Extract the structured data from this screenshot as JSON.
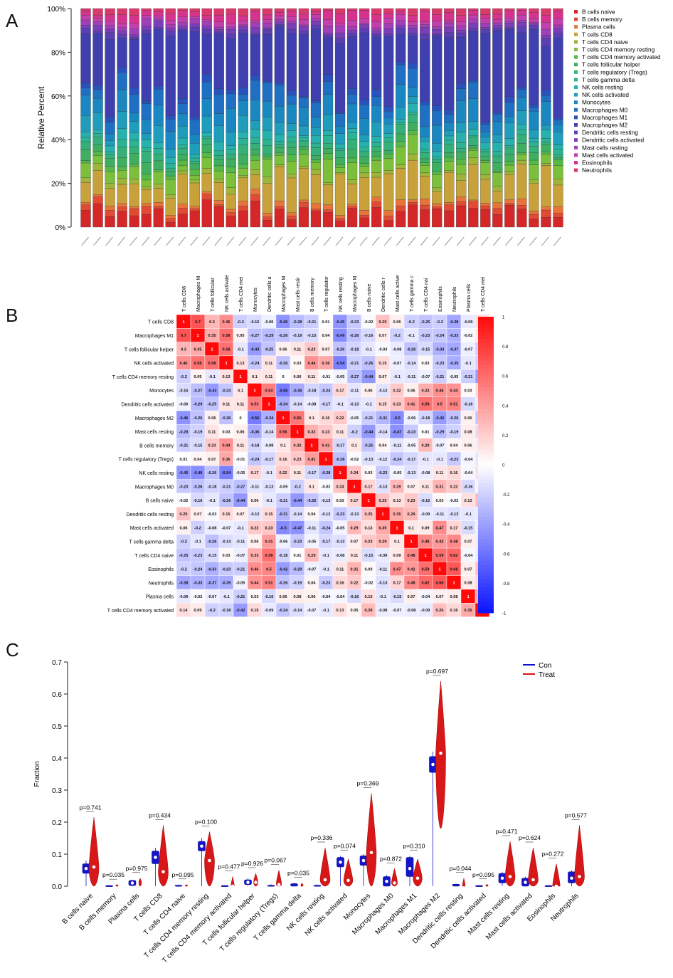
{
  "panels": {
    "a": "A",
    "b": "B",
    "c": "C"
  },
  "chart_data": [
    {
      "type": "bar",
      "stacked": true,
      "title": "",
      "ylabel": "Relative Percent",
      "yticks": [
        "0%",
        "20%",
        "40%",
        "60%",
        "80%",
        "100%"
      ],
      "ylim": [
        0,
        1
      ],
      "n_samples": 40,
      "categories": [
        "B cells naive",
        "B cells memory",
        "Plasma cells",
        "T cells CD8",
        "T cells CD4 naive",
        "T cells CD4 memory resting",
        "T cells CD4 memory activated",
        "T cells follicular helper",
        "T cells regulatory (Tregs)",
        "T cells gamma delta",
        "NK cells resting",
        "NK cells activated",
        "Monocytes",
        "Macrophages M0",
        "Macrophages M1",
        "Macrophages M2",
        "Dendritic cells resting",
        "Dendritic cells activated",
        "Mast cells resting",
        "Mast cells activated",
        "Eosinophils",
        "Neutrophils"
      ],
      "colors": [
        "#d62728",
        "#e34a33",
        "#e8743b",
        "#c8a13a",
        "#9fb53a",
        "#7cbf3a",
        "#55b848",
        "#3fae60",
        "#35b078",
        "#2bb394",
        "#26b1ae",
        "#1f9dbb",
        "#1b87c0",
        "#1f6fc2",
        "#2a52be",
        "#3f3fb0",
        "#5a3fb5",
        "#7a3fb8",
        "#a03fb8",
        "#c23fae",
        "#d6338f",
        "#d93a6a"
      ],
      "legend": [
        "B cells naive",
        "B cells memory",
        "Plasma cells",
        "T cells CD8",
        "T cells CD4 naive",
        "T cells CD4 memory resting",
        "T cells CD4 memory activated",
        "T cells follicular helper",
        "T cells regulatory (Tregs)",
        "T cells gamma delta",
        "NK cells resting",
        "NK cells activated",
        "Monocytes",
        "Macrophages M0",
        "Macrophages M1",
        "Macrophages M2",
        "Dendritic cells resting",
        "Dendritic cells activated",
        "Mast cells resting",
        "Mast cells activated",
        "Eosinophils",
        "Neutrophils"
      ],
      "legend_position": "right"
    },
    {
      "type": "heatmap",
      "labels": [
        "T cells CD8",
        "Macrophages M1",
        "T cells follicular helper",
        "NK cells activated",
        "T cells CD4 memory resting",
        "Monocytes",
        "Dendritic cells activated",
        "Macrophages M2",
        "Mast cells resting",
        "B cells memory",
        "T cells regulatory (Tregs)",
        "NK cells resting",
        "Macrophages M0",
        "B cells naive",
        "Dendritic cells resting",
        "Mast cells activated",
        "T cells gamma delta",
        "T cells CD4 naive",
        "Eosinophils",
        "Neutrophils",
        "Plasma cells",
        "T cells CD4 memory activated"
      ],
      "col_labels_truncated": [
        "T cells CD8",
        "Macrophages M",
        "T cells follicular",
        "NK cells activate",
        "T cells CD4 mei",
        "Monocytes",
        "Dendritic cells a",
        "Macrophages M",
        "Mast cells restir",
        "B cells memory",
        "T cells regulator",
        "NK cells resting",
        "Macrophages M",
        "B cells naive",
        "Dendritic cells r",
        "Mast cells active",
        "T cells gamma c",
        "T cells CD4 nai",
        "Eosinophils",
        "Neutrophils",
        "Plasma cells",
        "T cells CD4 mei"
      ],
      "scale_ticks": [
        "1",
        "0.8",
        "0.6",
        "0.4",
        "0.2",
        "0",
        "-0.2",
        "-0.4",
        "-0.6",
        "-0.8",
        "-1"
      ],
      "matrix": [
        [
          "1",
          "0.7",
          "0.3",
          "0.46",
          "-0.2",
          "-0.15",
          "-0.06",
          "-0.46",
          "-0.28",
          "-0.21",
          "0.01",
          "-0.45",
          "-0.23",
          "-0.02",
          "0.25",
          "0.06",
          "-0.2",
          "-0.25",
          "-0.2",
          "-0.38",
          "-0.09",
          "0.14"
        ],
        [
          "0.7",
          "1",
          "0.35",
          "0.58",
          "0.05",
          "-0.27",
          "-0.29",
          "-0.26",
          "-0.19",
          "-0.15",
          "0.04",
          "-0.49",
          "-0.26",
          "-0.16",
          "0.07",
          "-0.2",
          "-0.1",
          "-0.23",
          "-0.24",
          "-0.33",
          "-0.02",
          "0.09"
        ],
        [
          "0.3",
          "0.35",
          "1",
          "0.58",
          "-0.1",
          "-0.43",
          "-0.25",
          "0.06",
          "0.11",
          "0.23",
          "0.07",
          "-0.26",
          "-0.18",
          "-0.1",
          "-0.03",
          "-0.08",
          "-0.26",
          "-0.15",
          "-0.33",
          "-0.37",
          "-0.07",
          "-0.2"
        ],
        [
          "0.46",
          "0.58",
          "0.58",
          "1",
          "0.13",
          "-0.24",
          "0.11",
          "-0.26",
          "0.03",
          "0.44",
          "0.36",
          "-0.54",
          "-0.21",
          "-0.26",
          "0.15",
          "-0.07",
          "-0.14",
          "0.03",
          "-0.23",
          "-0.35",
          "-0.1",
          "-0.18"
        ],
        [
          "-0.2",
          "0.05",
          "-0.1",
          "0.13",
          "1",
          "0.1",
          "0.11",
          "0",
          "0.06",
          "0.11",
          "-0.01",
          "-0.05",
          "-0.27",
          "-0.44",
          "0.07",
          "-0.1",
          "-0.11",
          "-0.07",
          "-0.21",
          "-0.05",
          "-0.21",
          "-0.42"
        ],
        [
          "-0.15",
          "-0.27",
          "-0.43",
          "-0.24",
          "0.1",
          "1",
          "0.53",
          "-0.56",
          "-0.36",
          "-0.18",
          "-0.24",
          "0.17",
          "-0.11",
          "0.06",
          "-0.12",
          "0.22",
          "0.06",
          "0.33",
          "0.46",
          "0.44",
          "0.03",
          "0.15"
        ],
        [
          "-0.06",
          "-0.29",
          "-0.25",
          "0.11",
          "0.11",
          "0.53",
          "1",
          "-0.34",
          "-0.14",
          "-0.08",
          "-0.17",
          "-0.1",
          "-0.13",
          "-0.1",
          "0.15",
          "0.23",
          "0.41",
          "0.58",
          "0.5",
          "0.51",
          "-0.16",
          "-0.09"
        ],
        [
          "-0.46",
          "-0.26",
          "0.06",
          "-0.26",
          "0",
          "-0.56",
          "-0.34",
          "1",
          "0.56",
          "0.1",
          "0.16",
          "0.22",
          "-0.05",
          "-0.21",
          "-0.31",
          "-0.5",
          "-0.06",
          "-0.18",
          "-0.42",
          "-0.26",
          "0.06",
          "-0.24"
        ],
        [
          "-0.28",
          "-0.19",
          "0.11",
          "0.03",
          "0.06",
          "-0.36",
          "-0.14",
          "0.56",
          "1",
          "0.32",
          "0.23",
          "0.11",
          "-0.2",
          "-0.44",
          "-0.14",
          "-0.47",
          "-0.23",
          "0.01",
          "-0.29",
          "-0.19",
          "0.08",
          "-0.14"
        ],
        [
          "-0.21",
          "-0.15",
          "0.23",
          "0.44",
          "0.11",
          "-0.18",
          "-0.08",
          "0.1",
          "0.32",
          "1",
          "0.41",
          "-0.17",
          "0.1",
          "-0.25",
          "0.04",
          "-0.11",
          "-0.05",
          "0.29",
          "-0.07",
          "0.04",
          "0.06",
          "-0.07"
        ],
        [
          "0.01",
          "0.04",
          "0.07",
          "0.36",
          "-0.01",
          "-0.24",
          "-0.17",
          "0.16",
          "0.23",
          "0.41",
          "1",
          "-0.28",
          "-0.02",
          "-0.13",
          "-0.12",
          "-0.24",
          "-0.17",
          "-0.1",
          "-0.1",
          "-0.23",
          "-0.04",
          "-0.1"
        ],
        [
          "-0.45",
          "-0.49",
          "-0.26",
          "-0.54",
          "-0.05",
          "0.17",
          "-0.1",
          "0.22",
          "0.11",
          "-0.17",
          "-0.28",
          "1",
          "0.24",
          "0.03",
          "-0.23",
          "-0.05",
          "-0.13",
          "-0.08",
          "0.11",
          "0.16",
          "-0.04",
          "0.13"
        ],
        [
          "-0.23",
          "-0.26",
          "-0.18",
          "-0.21",
          "-0.27",
          "-0.11",
          "-0.13",
          "-0.05",
          "-0.2",
          "0.1",
          "-0.02",
          "0.24",
          "1",
          "0.17",
          "-0.13",
          "0.29",
          "0.07",
          "0.11",
          "0.31",
          "0.22",
          "-0.16",
          "0.05"
        ],
        [
          "-0.02",
          "-0.16",
          "-0.1",
          "-0.26",
          "-0.44",
          "0.06",
          "-0.1",
          "-0.21",
          "-0.44",
          "-0.25",
          "-0.13",
          "0.03",
          "0.17",
          "1",
          "0.25",
          "0.13",
          "0.23",
          "-0.15",
          "0.03",
          "-0.02",
          "0.13",
          "0.28"
        ],
        [
          "0.25",
          "0.07",
          "-0.03",
          "0.15",
          "0.07",
          "-0.12",
          "0.15",
          "-0.31",
          "-0.14",
          "0.04",
          "-0.12",
          "-0.23",
          "-0.13",
          "0.25",
          "1",
          "0.35",
          "0.29",
          "-0.09",
          "-0.11",
          "-0.13",
          "-0.1",
          "-0.08"
        ],
        [
          "0.06",
          "-0.2",
          "-0.08",
          "-0.07",
          "-0.1",
          "0.22",
          "0.23",
          "-0.5",
          "-0.47",
          "-0.11",
          "-0.24",
          "-0.05",
          "0.29",
          "0.13",
          "0.35",
          "1",
          "0.1",
          "0.09",
          "0.47",
          "0.17",
          "-0.15",
          "-0.07"
        ],
        [
          "-0.2",
          "-0.1",
          "-0.26",
          "-0.14",
          "-0.11",
          "0.06",
          "0.41",
          "-0.06",
          "-0.23",
          "-0.05",
          "-0.17",
          "-0.13",
          "0.07",
          "0.23",
          "0.29",
          "0.1",
          "1",
          "0.48",
          "0.42",
          "0.48",
          "0.07",
          "-0.08"
        ],
        [
          "-0.25",
          "-0.23",
          "-0.15",
          "0.03",
          "-0.07",
          "0.33",
          "0.58",
          "-0.18",
          "0.01",
          "0.29",
          "-0.1",
          "-0.08",
          "0.11",
          "-0.15",
          "-0.09",
          "0.09",
          "0.48",
          "1",
          "0.59",
          "0.62",
          "-0.04",
          "-0.09"
        ],
        [
          "-0.2",
          "-0.24",
          "-0.33",
          "-0.23",
          "-0.21",
          "0.46",
          "0.5",
          "-0.42",
          "-0.29",
          "-0.07",
          "-0.1",
          "0.11",
          "0.31",
          "0.03",
          "-0.11",
          "0.47",
          "0.42",
          "0.59",
          "1",
          "0.68",
          "0.07",
          "0.26"
        ],
        [
          "-0.38",
          "-0.33",
          "-0.37",
          "-0.35",
          "-0.05",
          "0.44",
          "0.51",
          "-0.26",
          "-0.19",
          "0.04",
          "-0.23",
          "0.16",
          "0.22",
          "-0.02",
          "-0.13",
          "0.17",
          "0.48",
          "0.62",
          "0.68",
          "1",
          "0.08",
          "0.16"
        ],
        [
          "-0.09",
          "-0.02",
          "-0.07",
          "-0.1",
          "-0.21",
          "0.03",
          "-0.16",
          "0.06",
          "0.08",
          "0.06",
          "-0.04",
          "-0.04",
          "-0.16",
          "0.13",
          "-0.1",
          "-0.15",
          "0.07",
          "-0.04",
          "0.07",
          "0.08",
          "1",
          "0.35"
        ],
        [
          "0.14",
          "0.09",
          "-0.2",
          "-0.18",
          "-0.42",
          "0.15",
          "-0.09",
          "-0.24",
          "-0.14",
          "-0.07",
          "-0.1",
          "0.13",
          "0.05",
          "0.28",
          "-0.08",
          "-0.07",
          "-0.08",
          "-0.09",
          "0.26",
          "0.16",
          "0.35",
          "1"
        ]
      ]
    },
    {
      "type": "violin",
      "ylabel": "Fraction",
      "ylim": [
        0,
        0.7
      ],
      "yticks": [
        "0.0",
        "0.1",
        "0.2",
        "0.3",
        "0.4",
        "0.5",
        "0.6",
        "0.7"
      ],
      "legend": [
        {
          "name": "Con",
          "color": "#1010d0"
        },
        {
          "name": "Treat",
          "color": "#e01010"
        }
      ],
      "legend_position": "top-right",
      "categories": [
        "B cells naive",
        "B cells memory",
        "Plasma cells",
        "T cells CD8",
        "T cells CD4 naive",
        "T cells CD4 memory resting",
        "T cells CD4 memory activated",
        "T cells follicular helper",
        "T cells regulatory (Tregs)",
        "T cells gamma delta",
        "NK cells resting",
        "NK cells activated",
        "Monocytes",
        "Macrophages M0",
        "Macrophages M1",
        "Macrophages M2",
        "Dendritic cells resting",
        "Dendritic cells activated",
        "Mast cells resting",
        "Mast cells activated",
        "Eosinophils",
        "Neutrophils"
      ],
      "pvalues": [
        "p=0.741",
        "p=0.035",
        "p=0.975",
        "p=0.434",
        "p=0.095",
        "p=0.100",
        "p=0.477",
        "p=0.926",
        "p=0.067",
        "p=0.035",
        "p=0.336",
        "p=0.074",
        "p=0.369",
        "p=0.872",
        "p=0.310",
        "p=0.697",
        "p=0.044",
        "p=0.095",
        "p=0.471",
        "p=0.624",
        "p=0.272",
        "p=0.577"
      ],
      "con": [
        {
          "q1": 0.04,
          "median": 0.055,
          "q3": 0.07,
          "max": 0.08
        },
        {
          "q1": 0.0,
          "median": 0.0,
          "q3": 0.002,
          "max": 0.003
        },
        {
          "q1": 0.002,
          "median": 0.01,
          "q3": 0.018,
          "max": 0.02
        },
        {
          "q1": 0.07,
          "median": 0.09,
          "q3": 0.11,
          "max": 0.12
        },
        {
          "q1": 0.0,
          "median": 0.0,
          "q3": 0.003,
          "max": 0.005
        },
        {
          "q1": 0.11,
          "median": 0.125,
          "q3": 0.14,
          "max": 0.15
        },
        {
          "q1": 0.0,
          "median": 0.0,
          "q3": 0.002,
          "max": 0.003
        },
        {
          "q1": 0.005,
          "median": 0.012,
          "q3": 0.02,
          "max": 0.025
        },
        {
          "q1": 0.0,
          "median": 0.0,
          "q3": 0.003,
          "max": 0.006
        },
        {
          "q1": 0.0,
          "median": 0.002,
          "q3": 0.008,
          "max": 0.01
        },
        {
          "q1": 0.0,
          "median": 0.0,
          "q3": 0.003,
          "max": 0.005
        },
        {
          "q1": 0.06,
          "median": 0.075,
          "q3": 0.09,
          "max": 0.095
        },
        {
          "q1": 0.065,
          "median": 0.08,
          "q3": 0.095,
          "max": 0.1
        },
        {
          "q1": 0.0,
          "median": 0.015,
          "q3": 0.03,
          "max": 0.035
        },
        {
          "q1": 0.03,
          "median": 0.055,
          "q3": 0.09,
          "max": 0.095
        },
        {
          "q1": 0.355,
          "median": 0.38,
          "q3": 0.405,
          "max": 0.42
        },
        {
          "q1": 0.0,
          "median": 0.002,
          "q3": 0.006,
          "max": 0.008
        },
        {
          "q1": 0.0,
          "median": 0.0,
          "q3": 0.002,
          "max": 0.003
        },
        {
          "q1": 0.01,
          "median": 0.025,
          "q3": 0.04,
          "max": 0.045
        },
        {
          "q1": 0.0,
          "median": 0.012,
          "q3": 0.025,
          "max": 0.03
        },
        {
          "q1": 0.0,
          "median": 0.0,
          "q3": 0.002,
          "max": 0.003
        },
        {
          "q1": 0.01,
          "median": 0.025,
          "q3": 0.045,
          "max": 0.05
        }
      ],
      "treat": [
        {
          "median": 0.06,
          "max": 0.215,
          "min": 0.0
        },
        {
          "median": 0.0,
          "max": 0.004,
          "min": 0.0
        },
        {
          "median": 0.01,
          "max": 0.025,
          "min": 0.0
        },
        {
          "median": 0.045,
          "max": 0.19,
          "min": 0.0
        },
        {
          "median": 0.0,
          "max": 0.004,
          "min": 0.0
        },
        {
          "median": 0.08,
          "max": 0.17,
          "min": 0.0
        },
        {
          "median": 0.0,
          "max": 0.03,
          "min": 0.0
        },
        {
          "median": 0.012,
          "max": 0.04,
          "min": 0.0
        },
        {
          "median": 0.005,
          "max": 0.05,
          "min": 0.0
        },
        {
          "median": 0.0,
          "max": 0.01,
          "min": 0.0
        },
        {
          "median": 0.02,
          "max": 0.12,
          "min": 0.0
        },
        {
          "median": 0.018,
          "max": 0.085,
          "min": 0.0
        },
        {
          "median": 0.105,
          "max": 0.29,
          "min": 0.0
        },
        {
          "median": 0.01,
          "max": 0.055,
          "min": 0.0
        },
        {
          "median": 0.025,
          "max": 0.085,
          "min": 0.0
        },
        {
          "median": 0.415,
          "max": 0.64,
          "min": 0.18
        },
        {
          "median": 0.0,
          "max": 0.025,
          "min": 0.0
        },
        {
          "median": 0.0,
          "max": 0.005,
          "min": 0.0
        },
        {
          "median": 0.03,
          "max": 0.14,
          "min": 0.0
        },
        {
          "median": 0.02,
          "max": 0.12,
          "min": 0.0
        },
        {
          "median": 0.0,
          "max": 0.07,
          "min": 0.0
        },
        {
          "median": 0.03,
          "max": 0.19,
          "min": 0.0
        }
      ]
    }
  ]
}
